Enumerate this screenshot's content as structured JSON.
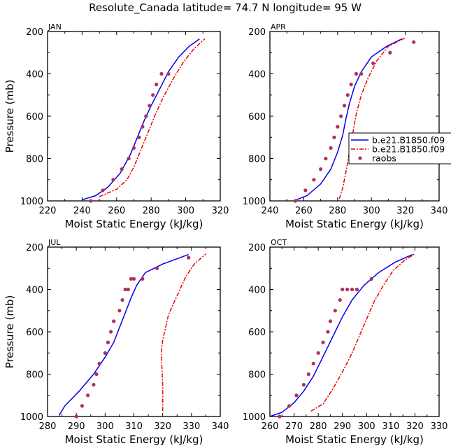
{
  "figure": {
    "title": "Resolute_Canada   latitude= 74.7 N longitude= 95 W",
    "colors": {
      "model1": "#0000ee",
      "model2": "#ee0000",
      "obs": "#b03060",
      "axis": "#000000"
    }
  },
  "legend": {
    "entries": [
      {
        "label": "b.e21.B1850.f09",
        "style": "solid",
        "color": "#0000ee"
      },
      {
        "label": "b.e21.B1850.f09",
        "style": "dashed",
        "color": "#ee0000"
      },
      {
        "label": "raobs",
        "style": "marker",
        "color": "#b03060"
      }
    ]
  },
  "chart_data": [
    {
      "type": "line",
      "panel": "JAN",
      "xlabel": "Moist Static Energy (kJ/kg)",
      "ylabel": "Pressure (mb)",
      "xlim": [
        220,
        320
      ],
      "xticks": [
        220,
        240,
        260,
        280,
        300,
        320
      ],
      "ylim": [
        1000,
        200
      ],
      "yticks": [
        200,
        400,
        600,
        800,
        1000
      ],
      "series": [
        {
          "name": "b.e21.B1850.f09",
          "style": "solid",
          "x": [
            240,
            248,
            255,
            262,
            268,
            272,
            276,
            280,
            285,
            290,
            296,
            302,
            308
          ],
          "y": [
            995,
            975,
            935,
            870,
            780,
            700,
            620,
            550,
            470,
            390,
            320,
            270,
            235
          ]
        },
        {
          "name": "b.e21.B1850.f09",
          "style": "dashed",
          "x": [
            250,
            260,
            266,
            270,
            274,
            278,
            282,
            287,
            293,
            299,
            305,
            311
          ],
          "y": [
            980,
            945,
            900,
            840,
            760,
            680,
            600,
            510,
            420,
            340,
            280,
            235
          ]
        },
        {
          "name": "raobs",
          "style": "marker",
          "x": [
            245,
            252,
            258,
            263,
            267,
            270,
            273,
            275,
            277,
            279,
            281,
            283,
            286,
            290
          ],
          "y": [
            1000,
            950,
            900,
            850,
            800,
            750,
            700,
            650,
            600,
            550,
            500,
            450,
            400,
            400
          ]
        }
      ]
    },
    {
      "type": "line",
      "panel": "APR",
      "xlabel": "Moist Static Energy (kJ/kg)",
      "ylabel": "",
      "xlim": [
        240,
        340
      ],
      "xticks": [
        240,
        260,
        280,
        300,
        320,
        340
      ],
      "ylim": [
        1000,
        200
      ],
      "yticks": [
        200,
        400,
        600,
        800,
        1000
      ],
      "series": [
        {
          "name": "b.e21.B1850.f09",
          "style": "solid",
          "x": [
            254,
            262,
            270,
            276,
            280,
            283,
            285,
            287,
            290,
            294,
            300,
            309,
            318
          ],
          "y": [
            1000,
            975,
            920,
            850,
            770,
            690,
            610,
            540,
            460,
            390,
            320,
            270,
            235
          ]
        },
        {
          "name": "b.e21.B1850.f09",
          "style": "dashed",
          "x": [
            281,
            283,
            285,
            287,
            289,
            291,
            294,
            298,
            303,
            310,
            320
          ],
          "y": [
            990,
            940,
            860,
            770,
            680,
            590,
            500,
            420,
            340,
            270,
            230
          ]
        },
        {
          "name": "raobs",
          "style": "marker",
          "x": [
            255,
            261,
            266,
            270,
            273,
            276,
            278,
            280,
            282,
            284,
            286,
            288,
            291,
            294,
            301,
            311,
            325
          ],
          "y": [
            1000,
            950,
            900,
            850,
            800,
            750,
            700,
            650,
            600,
            550,
            500,
            450,
            400,
            400,
            350,
            300,
            250
          ]
        }
      ]
    },
    {
      "type": "line",
      "panel": "JUL",
      "xlabel": "Moist Static Energy (kJ/kg)",
      "ylabel": "Pressure (mb)",
      "xlim": [
        280,
        340
      ],
      "xticks": [
        280,
        290,
        300,
        310,
        320,
        330,
        340
      ],
      "ylim": [
        1000,
        200
      ],
      "yticks": [
        200,
        400,
        600,
        800,
        1000
      ],
      "series": [
        {
          "name": "b.e21.B1850.f09",
          "style": "solid",
          "x": [
            284,
            286,
            291,
            296,
            300,
            303,
            305,
            307,
            309,
            311,
            314,
            320,
            329
          ],
          "y": [
            995,
            950,
            880,
            800,
            720,
            650,
            580,
            510,
            440,
            380,
            320,
            280,
            235
          ]
        },
        {
          "name": "b.e21.B1850.f09",
          "style": "dashed",
          "x": [
            320,
            320,
            319.5,
            320,
            321,
            322,
            324,
            326,
            328,
            331,
            335
          ],
          "y": [
            975,
            850,
            700,
            640,
            580,
            520,
            460,
            400,
            340,
            280,
            232
          ]
        },
        {
          "name": "raobs",
          "style": "marker",
          "x": [
            290,
            292,
            294,
            296,
            297,
            298,
            300,
            301,
            302,
            303,
            305,
            306,
            307,
            308,
            309,
            310,
            313,
            318,
            329
          ],
          "y": [
            1000,
            950,
            900,
            850,
            800,
            750,
            700,
            650,
            600,
            550,
            500,
            450,
            400,
            400,
            350,
            350,
            350,
            300,
            250
          ]
        }
      ]
    },
    {
      "type": "line",
      "panel": "OCT",
      "xlabel": "Moist Static Energy (kJ/kg)",
      "ylabel": "",
      "xlim": [
        260,
        330
      ],
      "xticks": [
        260,
        270,
        280,
        290,
        300,
        310,
        320,
        330
      ],
      "ylim": [
        1000,
        200
      ],
      "yticks": [
        200,
        400,
        600,
        800,
        1000
      ],
      "series": [
        {
          "name": "b.e21.B1850.f09",
          "style": "solid",
          "x": [
            260,
            265,
            270,
            274,
            278,
            281,
            284,
            287,
            290,
            294,
            299,
            305,
            312,
            319
          ],
          "y": [
            1000,
            980,
            935,
            880,
            810,
            740,
            670,
            600,
            530,
            450,
            380,
            320,
            270,
            235
          ]
        },
        {
          "name": "b.e21.B1850.f09",
          "style": "dashed",
          "x": [
            277,
            282,
            286,
            290,
            294,
            297,
            300,
            303,
            307,
            311,
            316,
            320
          ],
          "y": [
            975,
            940,
            870,
            790,
            700,
            620,
            540,
            460,
            380,
            310,
            260,
            232
          ]
        },
        {
          "name": "raobs",
          "style": "marker",
          "x": [
            264,
            268,
            271,
            274,
            276,
            278,
            280,
            282,
            284,
            285,
            287,
            289,
            290,
            292,
            294,
            296,
            302
          ],
          "y": [
            1000,
            950,
            900,
            850,
            800,
            750,
            700,
            650,
            600,
            550,
            500,
            450,
            400,
            400,
            400,
            400,
            350
          ]
        }
      ]
    }
  ]
}
